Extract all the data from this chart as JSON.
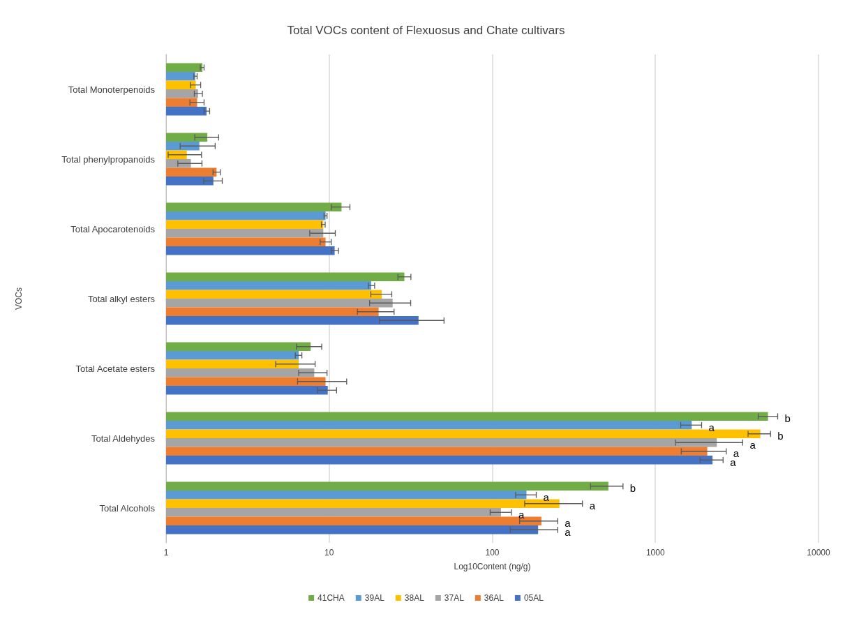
{
  "chart_data": {
    "type": "bar",
    "orientation": "horizontal",
    "title": "Total VOCs content of Flexuosus and Chate cultivars",
    "xlabel": "Log10Content (ng/g)",
    "ylabel": "VOCs",
    "categories": [
      "Total Monoterpenoids",
      "Total phenylpropanoids",
      "Total Apocarotenoids",
      "Total alkyl esters",
      "Total Acetate esters",
      "Total Aldehydes",
      "Total Alcohols"
    ],
    "log": "x",
    "xlim": [
      1,
      10000
    ],
    "xticks": [
      1,
      10,
      100,
      1000,
      10000
    ],
    "grid": "x",
    "legend": "bottom",
    "series": [
      {
        "name": "41CHA",
        "color": "#70ad47",
        "values": [
          1.67,
          1.79,
          11.9,
          28.9,
          7.7,
          4900,
          515
        ],
        "errors": [
          [
            1.62,
            1.71
          ],
          [
            1.5,
            2.1
          ],
          [
            10.3,
            13.4
          ],
          [
            26.4,
            31.7
          ],
          [
            6.3,
            9.0
          ],
          [
            4270,
            5620
          ],
          [
            400,
            633
          ]
        ],
        "value_labels": [
          null,
          null,
          null,
          null,
          null,
          "b",
          "b"
        ]
      },
      {
        "name": "39AL",
        "color": "#5b9bd5",
        "values": [
          1.51,
          1.6,
          9.5,
          18.1,
          6.5,
          1670,
          162
        ],
        "errors": [
          [
            1.48,
            1.55
          ],
          [
            1.22,
            2.0
          ],
          [
            9.3,
            9.7
          ],
          [
            17.4,
            19.0
          ],
          [
            6.2,
            6.8
          ],
          [
            1430,
            1920
          ],
          [
            139,
            186
          ]
        ],
        "value_labels": [
          null,
          null,
          null,
          null,
          null,
          "a",
          "a"
        ]
      },
      {
        "name": "38AL",
        "color": "#ffc000",
        "values": [
          1.52,
          1.34,
          9.2,
          21.0,
          6.5,
          4400,
          258
        ],
        "errors": [
          [
            1.41,
            1.63
          ],
          [
            1.03,
            1.65
          ],
          [
            8.96,
            9.45
          ],
          [
            18.0,
            24.2
          ],
          [
            4.7,
            8.2
          ],
          [
            3700,
            5080
          ],
          [
            158,
            357
          ]
        ],
        "value_labels": [
          null,
          null,
          null,
          null,
          null,
          "b",
          "a"
        ]
      },
      {
        "name": "37AL",
        "color": "#a5a5a5",
        "values": [
          1.57,
          1.42,
          9.2,
          24.5,
          8.1,
          2380,
          113
        ],
        "errors": [
          [
            1.49,
            1.67
          ],
          [
            1.18,
            1.66
          ],
          [
            7.6,
            10.9
          ],
          [
            17.7,
            31.6
          ],
          [
            6.5,
            9.7
          ],
          [
            1330,
            3430
          ],
          [
            97,
            131
          ]
        ],
        "value_labels": [
          null,
          null,
          null,
          null,
          null,
          "a",
          "a"
        ]
      },
      {
        "name": "36AL",
        "color": "#ed7d31",
        "values": [
          1.55,
          2.04,
          9.5,
          20.1,
          9.5,
          2080,
          200
        ],
        "errors": [
          [
            1.4,
            1.71
          ],
          [
            1.94,
            2.15
          ],
          [
            8.8,
            10.3
          ],
          [
            14.9,
            25.0
          ],
          [
            6.4,
            12.8
          ],
          [
            1440,
            2720
          ],
          [
            147,
            252
          ]
        ],
        "value_labels": [
          null,
          null,
          null,
          null,
          null,
          "a",
          "a"
        ]
      },
      {
        "name": "05AL",
        "color": "#4472c4",
        "values": [
          1.77,
          1.95,
          10.8,
          35.3,
          9.8,
          2240,
          191
        ],
        "errors": [
          [
            1.71,
            1.85
          ],
          [
            1.7,
            2.21
          ],
          [
            10.3,
            11.4
          ],
          [
            20.3,
            50.6
          ],
          [
            8.5,
            11.1
          ],
          [
            1880,
            2600
          ],
          [
            129,
            252
          ]
        ],
        "value_labels": [
          null,
          null,
          null,
          null,
          null,
          "a",
          "a"
        ]
      }
    ]
  }
}
